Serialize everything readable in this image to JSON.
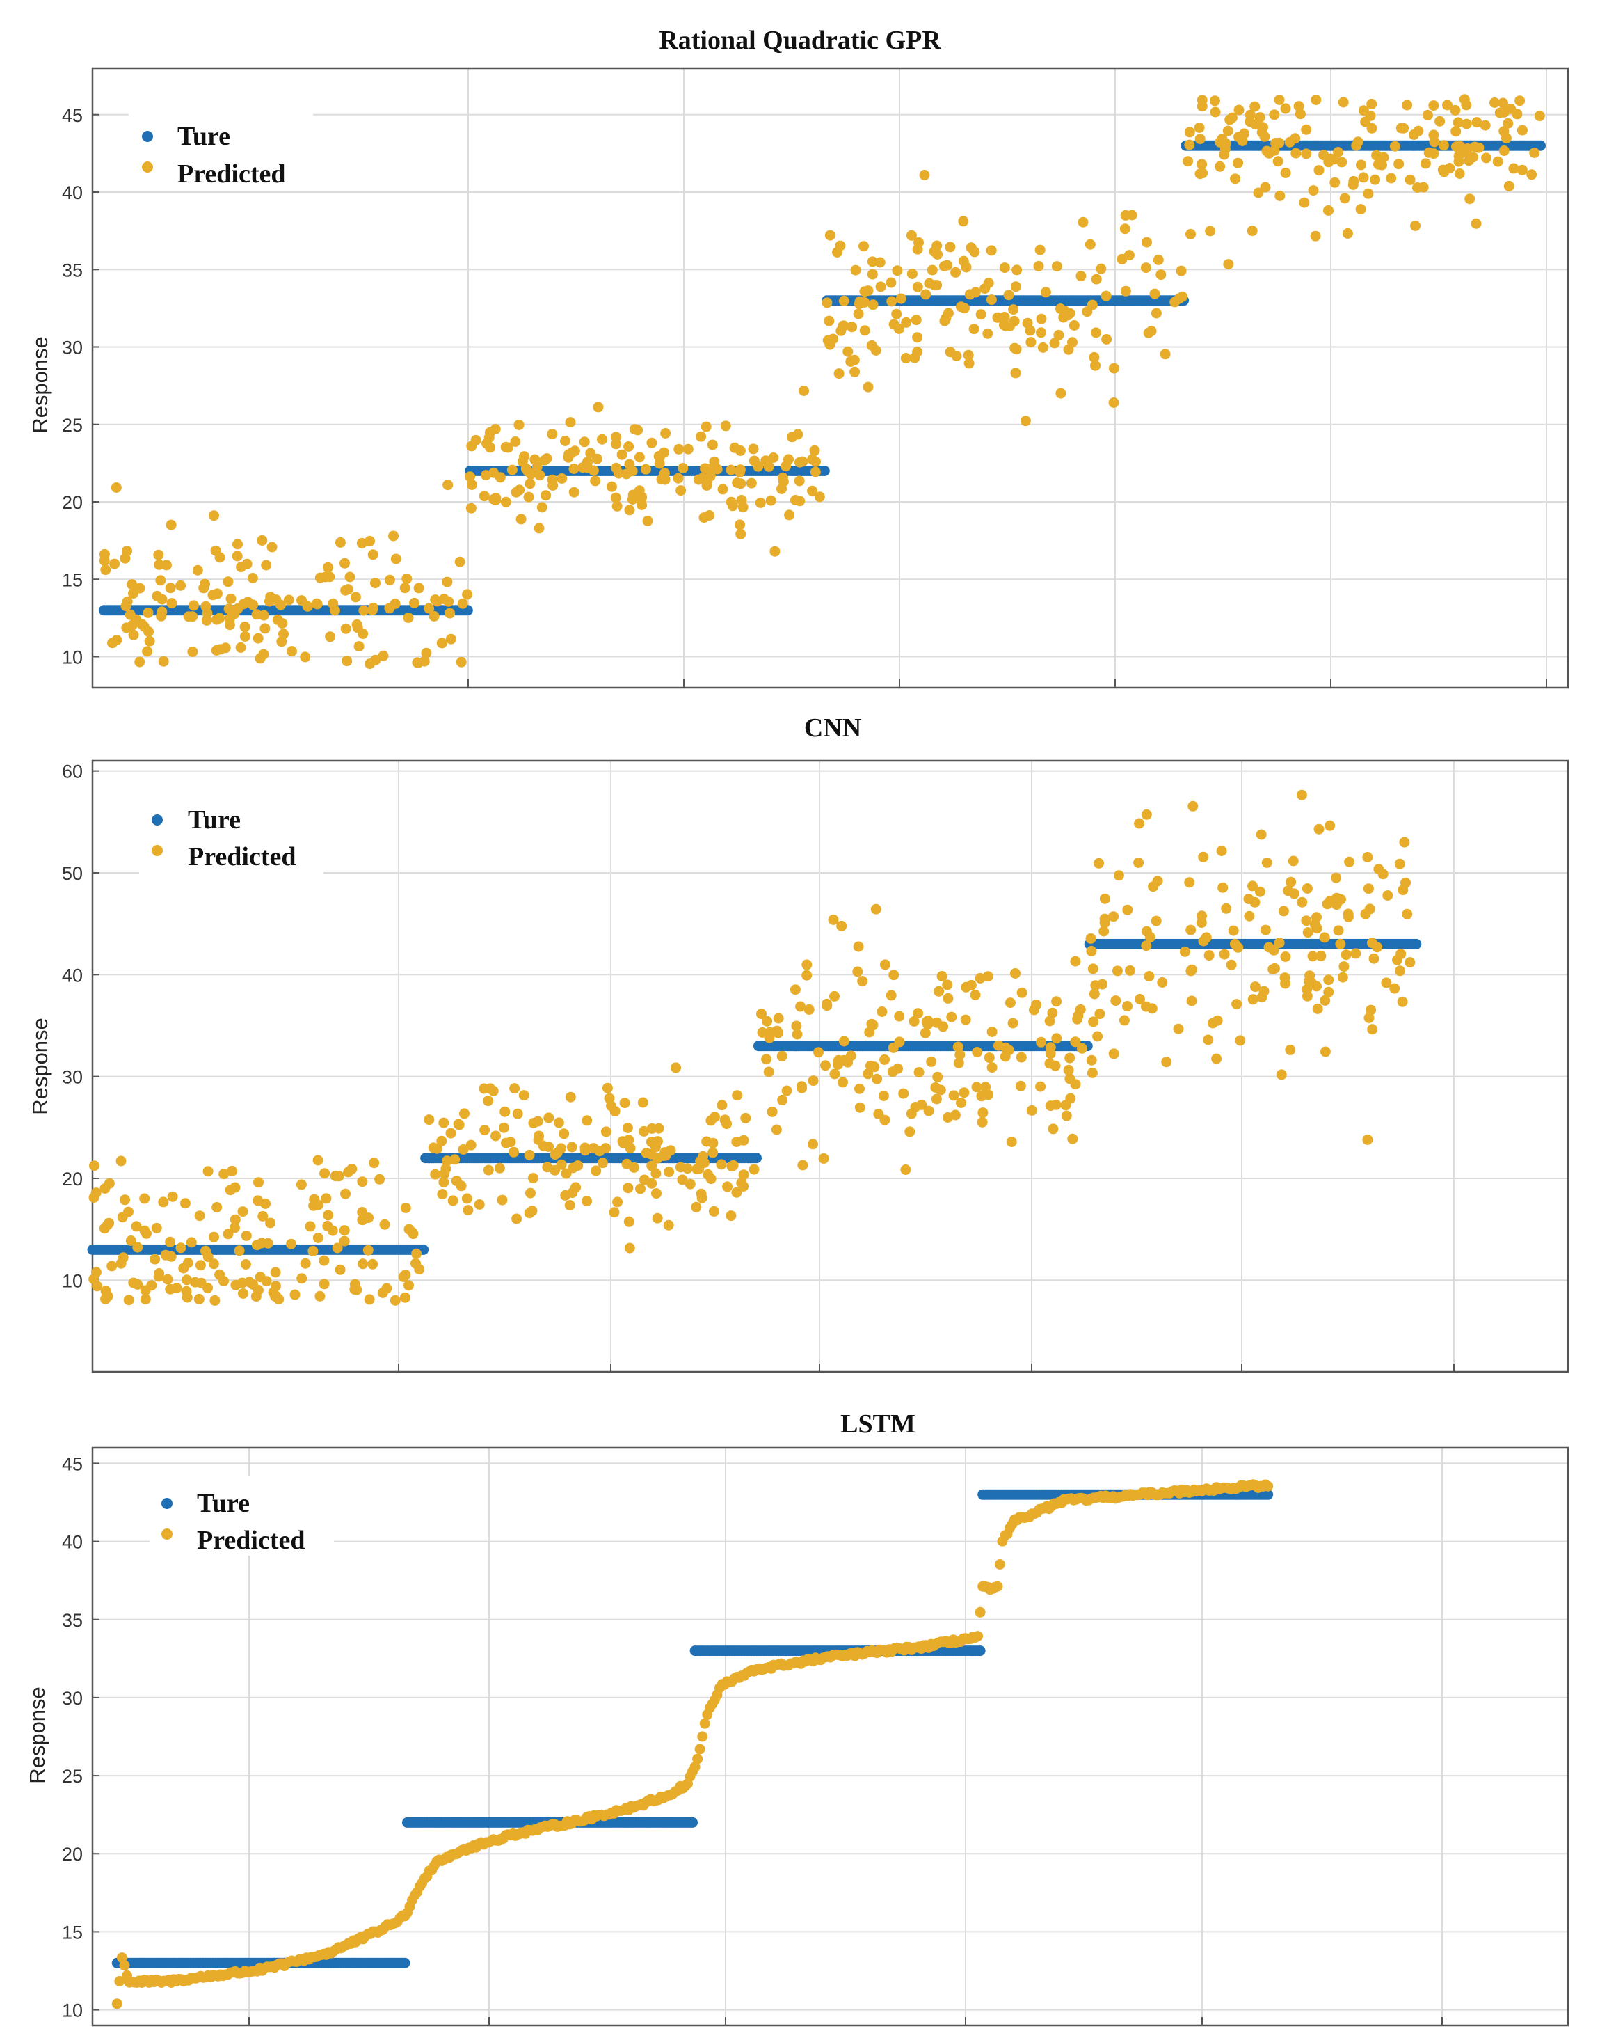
{
  "figure": {
    "colors": {
      "true": "#1f6fb5",
      "predicted": "#e6ac2a"
    }
  },
  "chart_data": [
    {
      "type": "scatter",
      "title": "Rational Quadratic GPR",
      "xlabel": "",
      "ylabel": "Response",
      "xlim": [
        -5,
        640
      ],
      "ylim": [
        8,
        48
      ],
      "yticks": [
        10,
        15,
        20,
        25,
        30,
        35,
        40,
        45
      ],
      "grid": true,
      "legend_position": "top-left",
      "n_per_segment": 160,
      "series": [
        {
          "name": "Ture",
          "segments": [
            {
              "x": [
                0,
                159
              ],
              "y": 13
            },
            {
              "x": [
                160,
                315
              ],
              "y": 22
            },
            {
              "x": [
                316,
                472
              ],
              "y": 33
            },
            {
              "x": [
                473,
                628
              ],
              "y": 43
            }
          ]
        },
        {
          "name": "Predicted",
          "noise_sd": [
            2.8,
            1.7,
            2.7,
            2.6
          ],
          "y_range": [
            9.5,
            46
          ]
        }
      ]
    },
    {
      "type": "scatter",
      "title": "CNN",
      "xlabel": "",
      "ylabel": "Response",
      "xlim": [
        0,
        700
      ],
      "ylim": [
        1,
        61
      ],
      "yticks": [
        10,
        20,
        30,
        40,
        50,
        60
      ],
      "grid": true,
      "legend_position": "top-left",
      "n_per_segment": 160,
      "series": [
        {
          "name": "Ture",
          "segments": [
            {
              "x": [
                0,
                157
              ],
              "y": 13
            },
            {
              "x": [
                158,
                315
              ],
              "y": 22
            },
            {
              "x": [
                316,
                472
              ],
              "y": 33
            },
            {
              "x": [
                473,
                628
              ],
              "y": 43
            }
          ]
        },
        {
          "name": "Predicted",
          "noise_sd": [
            5.0,
            4.0,
            5.0,
            6.0
          ],
          "y_range": [
            8,
            58
          ]
        }
      ]
    },
    {
      "type": "scatter",
      "title": "LSTM",
      "xlabel": "",
      "ylabel": "Response",
      "xlim": [
        -10,
        590
      ],
      "ylim": [
        9,
        46
      ],
      "yticks": [
        10,
        15,
        20,
        25,
        30,
        35,
        40,
        45
      ],
      "grid": true,
      "legend_position": "top-left",
      "n_per_segment": 160,
      "series": [
        {
          "name": "Ture",
          "segments": [
            {
              "x": [
                0,
                117
              ],
              "y": 13
            },
            {
              "x": [
                118,
                234
              ],
              "y": 22
            },
            {
              "x": [
                235,
                351
              ],
              "y": 33
            },
            {
              "x": [
                352,
                468
              ],
              "y": 43
            }
          ]
        },
        {
          "name": "Predicted",
          "curve": [
            [
              0,
              10.4
            ],
            [
              2,
              13.3
            ],
            [
              5,
              11.8
            ],
            [
              20,
              11.8
            ],
            [
              60,
              12.6
            ],
            [
              85,
              13.6
            ],
            [
              100,
              14.6
            ],
            [
              112,
              15.5
            ],
            [
              118,
              16.2
            ],
            [
              123,
              18.0
            ],
            [
              130,
              19.5
            ],
            [
              140,
              20.2
            ],
            [
              160,
              21.2
            ],
            [
              190,
              22.2
            ],
            [
              210,
              23.0
            ],
            [
              225,
              23.8
            ],
            [
              232,
              24.5
            ],
            [
              236,
              26.0
            ],
            [
              240,
              29.0
            ],
            [
              246,
              30.8
            ],
            [
              260,
              31.8
            ],
            [
              290,
              32.6
            ],
            [
              330,
              33.3
            ],
            [
              350,
              33.9
            ],
            [
              352,
              37.0
            ],
            [
              358,
              37.0
            ],
            [
              360,
              40.0
            ],
            [
              365,
              41.3
            ],
            [
              385,
              42.6
            ],
            [
              440,
              43.3
            ],
            [
              468,
              43.6
            ]
          ]
        }
      ]
    }
  ]
}
